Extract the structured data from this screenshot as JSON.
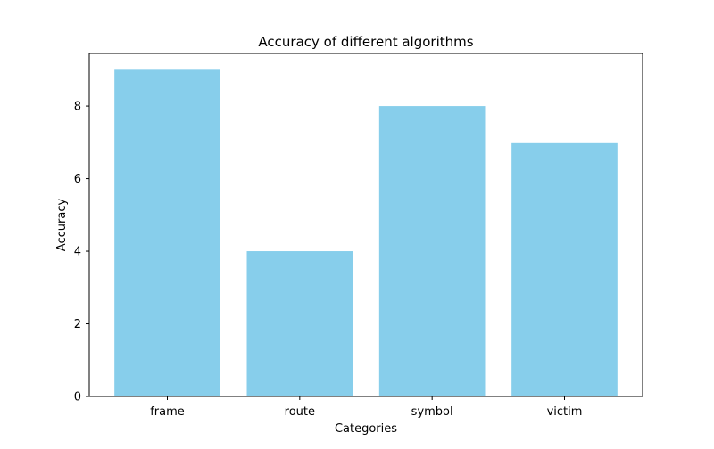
{
  "chart_data": {
    "type": "bar",
    "title": "Accuracy of different algorithms",
    "xlabel": "Categories",
    "ylabel": "Accuracy",
    "categories": [
      "frame",
      "route",
      "symbol",
      "victim"
    ],
    "values": [
      9,
      4,
      8,
      7
    ],
    "ylim": [
      0,
      9.45
    ],
    "yticks": [
      0,
      2,
      4,
      6,
      8
    ],
    "bar_color": "#87ceeb",
    "grid": false,
    "legend": "none"
  }
}
